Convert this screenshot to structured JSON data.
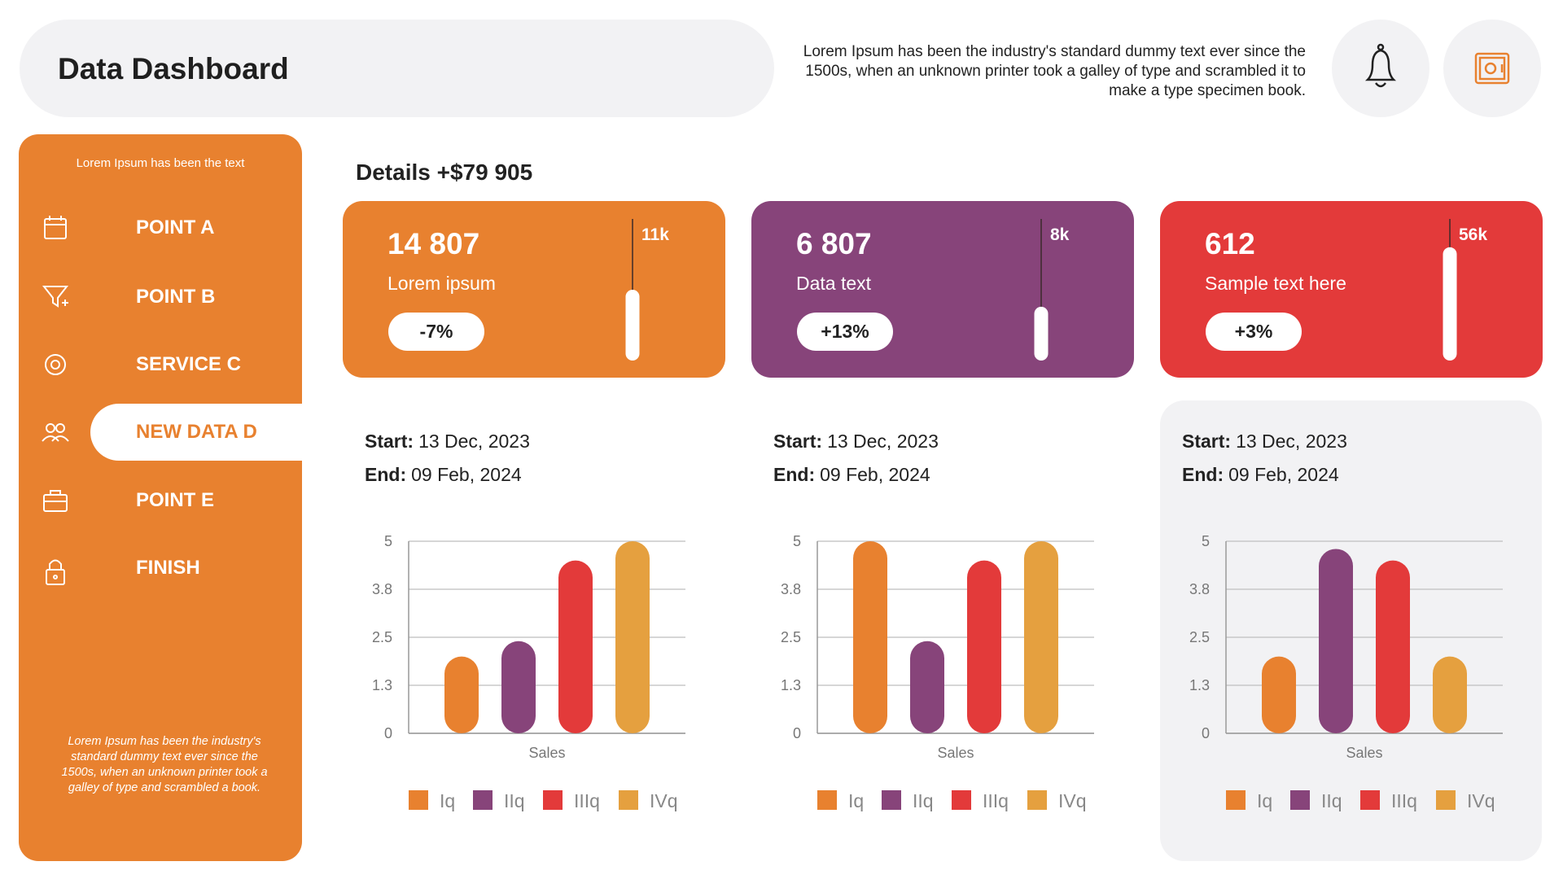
{
  "header": {
    "title": "Data Dashboard",
    "description": "Lorem Ipsum has been the industry's standard dummy text ever since the 1500s, when an unknown printer took a galley of type and scrambled it to make a type specimen book."
  },
  "sidebar": {
    "caption": "Lorem Ipsum has been the text",
    "items": [
      "POINT A",
      "POINT B",
      "SERVICE C",
      "NEW DATA D",
      "POINT E",
      "FINISH"
    ],
    "active": 3,
    "footer": "Lorem Ipsum has been the industry's standard dummy text ever since the 1500s, when an unknown printer took a galley of type and scrambled  a book."
  },
  "details": {
    "title": "Details +$79 905"
  },
  "cards": [
    {
      "value": "14 807",
      "label": "Lorem ipsum",
      "change": "-7%",
      "max": "11k",
      "level": 0.5,
      "color": "#E8812F"
    },
    {
      "value": "6 807",
      "label": "Data text",
      "change": "+13%",
      "max": "8k",
      "level": 0.38,
      "color": "#87447A"
    },
    {
      "value": "612",
      "label": "Sample text here",
      "change": "+3%",
      "max": "56k",
      "level": 0.8,
      "color": "#E33A3A"
    }
  ],
  "chart_data": [
    {
      "type": "bar",
      "start_label": "Start:",
      "start": "13 Dec, 2023",
      "end_label": "End:",
      "end": "09 Feb, 2024",
      "categories": [
        "Sales"
      ],
      "series": [
        {
          "name": "Iq",
          "color": "#E8812F",
          "values": [
            2
          ]
        },
        {
          "name": "IIq",
          "color": "#87447A",
          "values": [
            2.4
          ]
        },
        {
          "name": "IIIq",
          "color": "#E33A3A",
          "values": [
            4.5
          ]
        },
        {
          "name": "IVq",
          "color": "#E5A03F",
          "values": [
            5
          ]
        }
      ],
      "ylim": [
        0,
        5
      ],
      "yticks": [
        0,
        {
          "value": 1.25,
          "label": "1.3"
        },
        2.5,
        {
          "value": 3.75,
          "label": "3.8"
        },
        5
      ],
      "grid": true
    },
    {
      "type": "bar",
      "start_label": "Start:",
      "start": "13 Dec, 2023",
      "end_label": "End:",
      "end": "09 Feb, 2024",
      "categories": [
        "Sales"
      ],
      "series": [
        {
          "name": "Iq",
          "color": "#E8812F",
          "values": [
            5
          ]
        },
        {
          "name": "IIq",
          "color": "#87447A",
          "values": [
            2.4
          ]
        },
        {
          "name": "IIIq",
          "color": "#E33A3A",
          "values": [
            4.5
          ]
        },
        {
          "name": "IVq",
          "color": "#E5A03F",
          "values": [
            5
          ]
        }
      ],
      "ylim": [
        0,
        5
      ],
      "yticks": [
        0,
        {
          "value": 1.25,
          "label": "1.3"
        },
        2.5,
        {
          "value": 3.75,
          "label": "3.8"
        },
        5
      ],
      "grid": true
    },
    {
      "type": "bar",
      "start_label": "Start:",
      "start": "13 Dec, 2023",
      "end_label": "End:",
      "end": "09 Feb, 2024",
      "categories": [
        "Sales"
      ],
      "series": [
        {
          "name": "Iq",
          "color": "#E8812F",
          "values": [
            2
          ]
        },
        {
          "name": "IIq",
          "color": "#87447A",
          "values": [
            4.8
          ]
        },
        {
          "name": "IIIq",
          "color": "#E33A3A",
          "values": [
            4.5
          ]
        },
        {
          "name": "IVq",
          "color": "#E5A03F",
          "values": [
            2
          ]
        }
      ],
      "ylim": [
        0,
        5
      ],
      "yticks": [
        0,
        {
          "value": 1.25,
          "label": "1.3"
        },
        2.5,
        {
          "value": 3.75,
          "label": "3.8"
        },
        5
      ],
      "grid": true,
      "background": "#F2F2F4"
    }
  ]
}
